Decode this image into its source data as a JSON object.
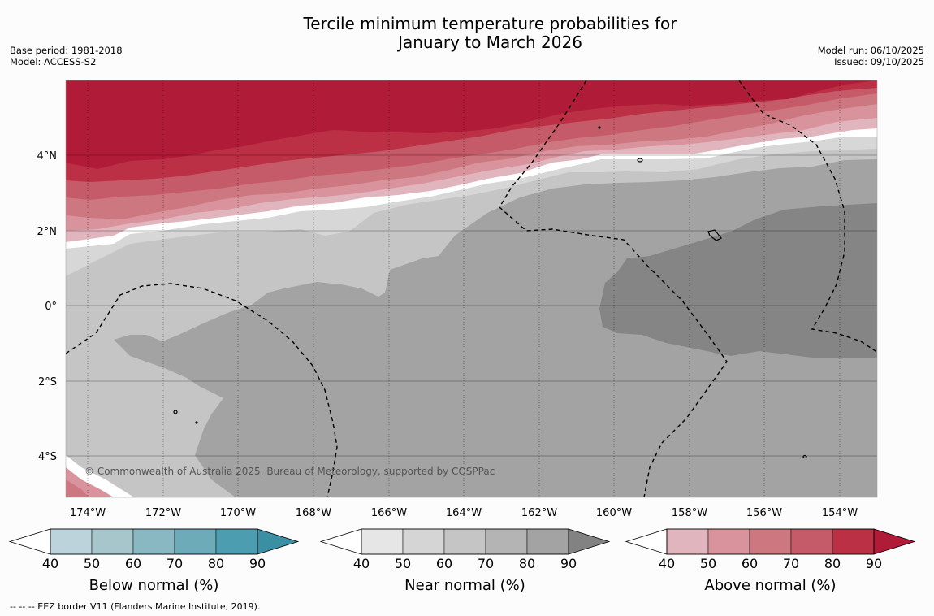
{
  "title": {
    "line1": "Tercile minimum temperature probabilities for",
    "line2": "January to March 2026"
  },
  "meta": {
    "base_period": "Base period: 1981-2018",
    "model": "Model: ACCESS-S2",
    "model_run": "Model run: 06/10/2025",
    "issued": "Issued: 09/10/2025"
  },
  "map": {
    "lat_labels": [
      "4°N",
      "2°N",
      "0°",
      "2°S",
      "4°S"
    ],
    "lon_labels": [
      "174°W",
      "172°W",
      "170°W",
      "168°W",
      "166°W",
      "164°W",
      "162°W",
      "160°W",
      "158°W",
      "156°W",
      "154°W"
    ],
    "copyright": "© Commonwealth of Australia 2025, Bureau of Meteorology, supported by COSPPac"
  },
  "colorbars": [
    {
      "label": "Below normal (%)",
      "ticks": [
        "40",
        "50",
        "60",
        "70",
        "80",
        "90"
      ],
      "colors": [
        "#bdd3db",
        "#a7c6cc",
        "#89b7c2",
        "#6eabb9",
        "#4b9daf",
        "#3a8fa3"
      ]
    },
    {
      "label": "Near normal (%)",
      "ticks": [
        "40",
        "50",
        "60",
        "70",
        "80",
        "90"
      ],
      "colors": [
        "#e6e6e6",
        "#d5d5d5",
        "#c5c5c5",
        "#b4b4b4",
        "#a3a3a3",
        "#828282"
      ]
    },
    {
      "label": "Above normal (%)",
      "ticks": [
        "40",
        "50",
        "60",
        "70",
        "80",
        "90"
      ],
      "colors": [
        "#e1b5bd",
        "#d8939d",
        "#cd7780",
        "#c55b68",
        "#bc3046",
        "#b01c38"
      ]
    }
  ],
  "footer": "--  --  -- EEZ border V11 (Flanders Marine Institute, 2019).",
  "colors": {
    "above_dark": "#b01c38",
    "near_mid": "#a3a3a3",
    "near_dark": "#858585"
  }
}
